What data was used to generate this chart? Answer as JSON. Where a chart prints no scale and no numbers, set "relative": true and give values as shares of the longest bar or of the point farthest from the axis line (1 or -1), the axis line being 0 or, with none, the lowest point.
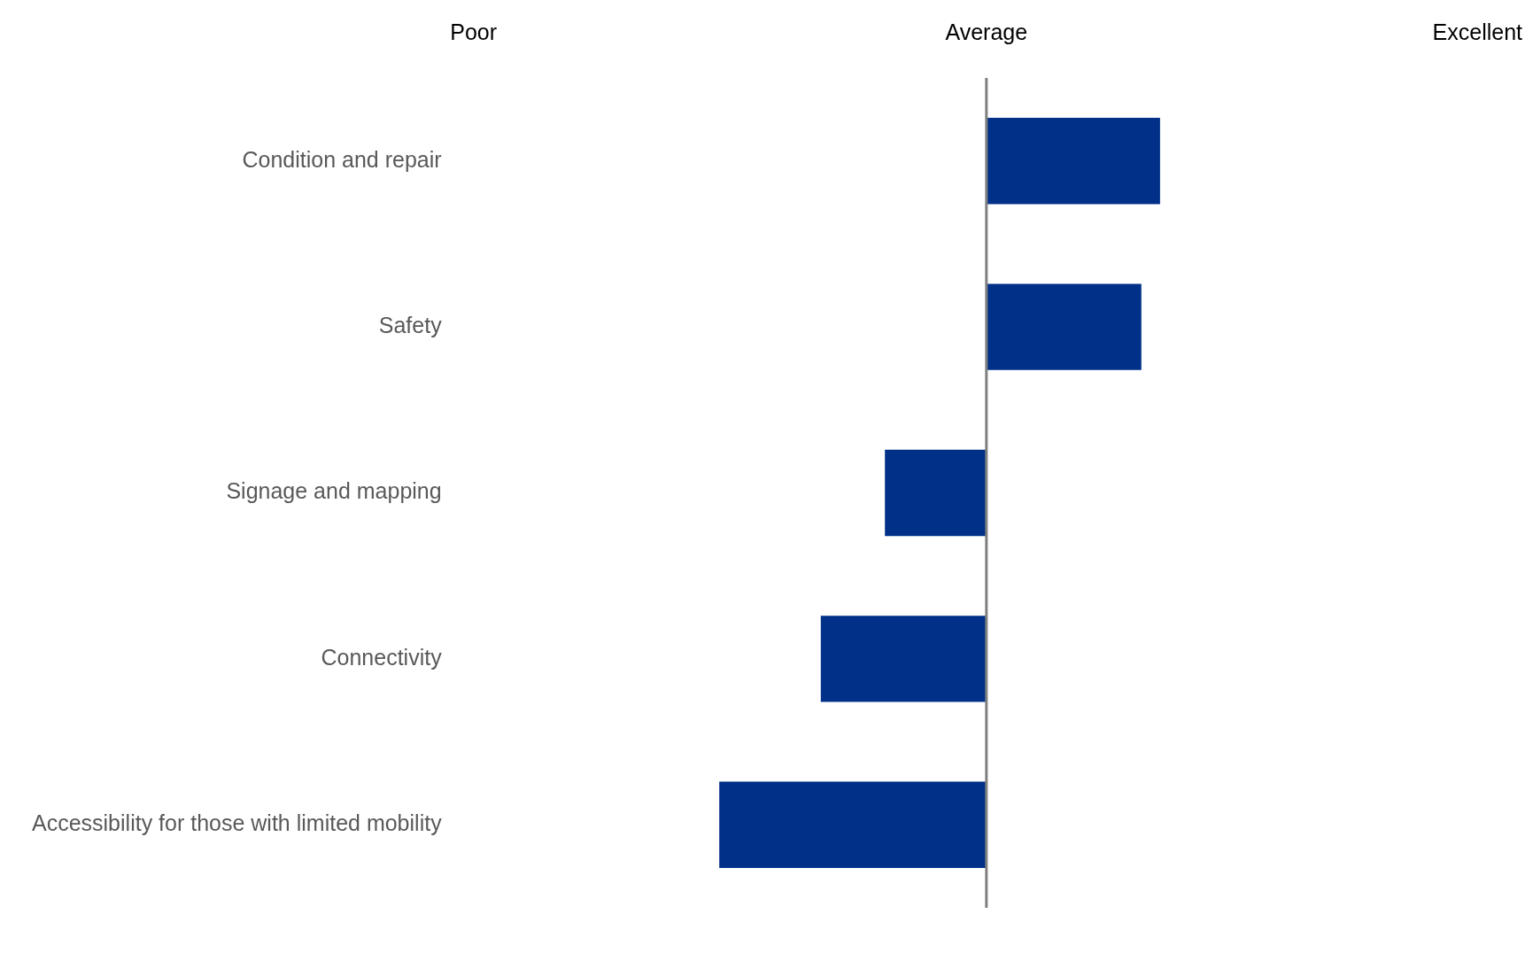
{
  "chart_data": {
    "type": "bar",
    "orientation": "horizontal",
    "relative": true,
    "categories": [
      "Condition and repair",
      "Safety",
      "Signage and mapping",
      "Connectivity",
      "Accessibility for those with limited mobility"
    ],
    "values": [
      0.65,
      0.58,
      -0.38,
      -0.62,
      -1
    ],
    "color": "#003087",
    "annotations": [
      "Poor",
      "Average",
      "Excellent"
    ]
  }
}
